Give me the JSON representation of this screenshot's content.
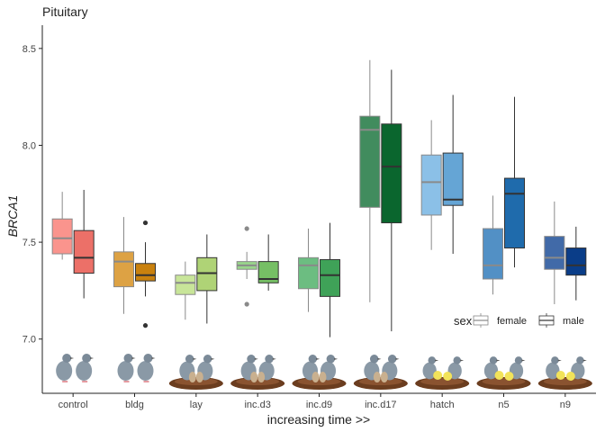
{
  "chart_data": {
    "type": "boxplot",
    "title": "Pituitary",
    "xlabel": "increasing time >>",
    "ylabel": "BRCA1",
    "ylim": [
      6.72,
      8.62
    ],
    "yticks": [
      "7.0",
      "7.5",
      "8.0",
      "8.5"
    ],
    "ytick_values": [
      7.0,
      7.5,
      8.0,
      8.5
    ],
    "grid": false,
    "legend": {
      "title": "sex",
      "placement": "bottom-right",
      "entries": [
        "female",
        "male"
      ]
    },
    "categories": [
      "control",
      "bldg",
      "lay",
      "inc.d3",
      "inc.d9",
      "inc.d17",
      "hatch",
      "n5",
      "n9"
    ],
    "colors": [
      "#F8766D",
      "#D4880F",
      "#B8DE7C",
      "#7CC96A",
      "#42AB5D",
      "#0B6B30",
      "#6AAEE0",
      "#2171B5",
      "#0B408F"
    ],
    "series": [
      {
        "name": "female",
        "boxes": [
          {
            "whislo": 7.41,
            "q1": 7.44,
            "med": 7.52,
            "q3": 7.62,
            "whishi": 7.76,
            "fliers": []
          },
          {
            "whislo": 7.13,
            "q1": 7.27,
            "med": 7.4,
            "q3": 7.45,
            "whishi": 7.63,
            "fliers": []
          },
          {
            "whislo": 7.1,
            "q1": 7.23,
            "med": 7.29,
            "q3": 7.33,
            "whishi": 7.4,
            "fliers": []
          },
          {
            "whislo": 7.31,
            "q1": 7.36,
            "med": 7.38,
            "q3": 7.4,
            "whishi": 7.45,
            "fliers": [
              7.57,
              7.18
            ]
          },
          {
            "whislo": 7.14,
            "q1": 7.26,
            "med": 7.38,
            "q3": 7.42,
            "whishi": 7.57,
            "fliers": []
          },
          {
            "whislo": 7.19,
            "q1": 7.68,
            "med": 8.08,
            "q3": 8.15,
            "whishi": 8.44,
            "fliers": []
          },
          {
            "whislo": 7.46,
            "q1": 7.64,
            "med": 7.81,
            "q3": 7.95,
            "whishi": 8.13,
            "fliers": []
          },
          {
            "whislo": 7.23,
            "q1": 7.31,
            "med": 7.38,
            "q3": 7.57,
            "whishi": 7.74,
            "fliers": []
          },
          {
            "whislo": 7.18,
            "q1": 7.36,
            "med": 7.42,
            "q3": 7.53,
            "whishi": 7.71,
            "fliers": []
          }
        ]
      },
      {
        "name": "male",
        "boxes": [
          {
            "whislo": 7.21,
            "q1": 7.34,
            "med": 7.42,
            "q3": 7.56,
            "whishi": 7.77,
            "fliers": []
          },
          {
            "whislo": 7.22,
            "q1": 7.3,
            "med": 7.33,
            "q3": 7.39,
            "whishi": 7.5,
            "fliers": [
              7.6,
              7.07
            ]
          },
          {
            "whislo": 7.08,
            "q1": 7.25,
            "med": 7.34,
            "q3": 7.42,
            "whishi": 7.54,
            "fliers": []
          },
          {
            "whislo": 7.25,
            "q1": 7.29,
            "med": 7.31,
            "q3": 7.4,
            "whishi": 7.54,
            "fliers": []
          },
          {
            "whislo": 7.01,
            "q1": 7.22,
            "med": 7.33,
            "q3": 7.41,
            "whishi": 7.6,
            "fliers": []
          },
          {
            "whislo": 7.04,
            "q1": 7.6,
            "med": 7.89,
            "q3": 8.11,
            "whishi": 8.39,
            "fliers": []
          },
          {
            "whislo": 7.44,
            "q1": 7.69,
            "med": 7.72,
            "q3": 7.96,
            "whishi": 8.26,
            "fliers": []
          },
          {
            "whislo": 7.37,
            "q1": 7.47,
            "med": 7.75,
            "q3": 7.83,
            "whishi": 8.25,
            "fliers": []
          },
          {
            "whislo": 7.2,
            "q1": 7.33,
            "med": 7.38,
            "q3": 7.47,
            "whishi": 7.58,
            "fliers": []
          }
        ]
      }
    ]
  },
  "illustrations": [
    "pigeon-pair-icon",
    "pigeon-pair-nest-icon",
    "nest-eggs-icon",
    "nest-chicks-icon"
  ]
}
